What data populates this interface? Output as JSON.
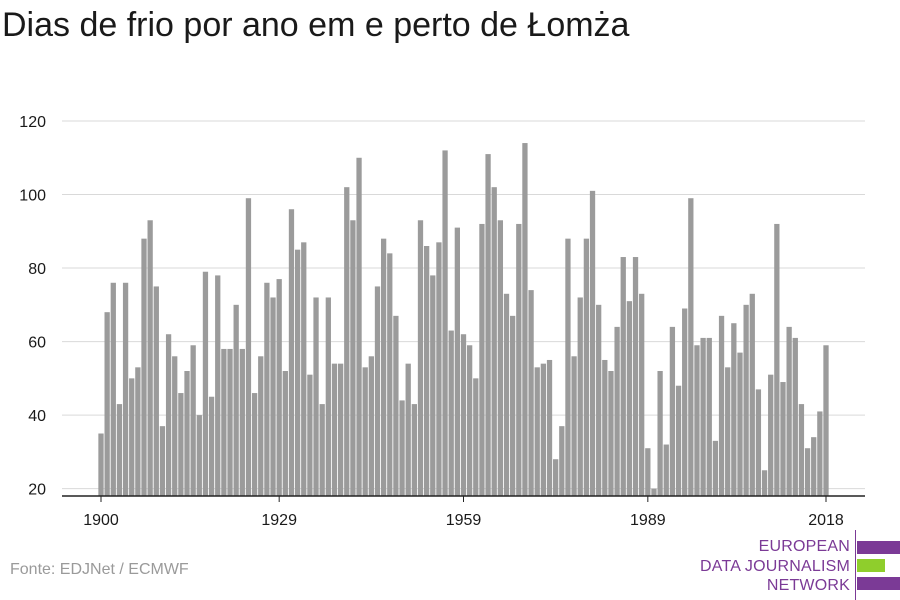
{
  "title": "Dias de frio por ano em e perto de Łomża",
  "source": "Fonte: EDJNet / ECMWF",
  "logo": {
    "lines": [
      "EUROPEAN",
      "DATA JOURNALISM",
      "NETWORK"
    ],
    "colors": {
      "purple": "#7b3a96",
      "green": "#8fce2c"
    }
  },
  "colors": {
    "bar": "#9b9b9b",
    "grid": "#d9d9d9",
    "axis": "#222222",
    "text": "#1a1a1a"
  },
  "chart_data": {
    "type": "bar",
    "title": "Dias de frio por ano em e perto de Łomża",
    "xlabel": "",
    "ylabel": "",
    "ylim": [
      18,
      120
    ],
    "yticks": [
      20,
      40,
      60,
      80,
      100,
      120
    ],
    "xticks": [
      1900,
      1929,
      1959,
      1989,
      2018
    ],
    "grid": true,
    "x": [
      1900,
      1901,
      1902,
      1903,
      1904,
      1905,
      1906,
      1907,
      1908,
      1909,
      1910,
      1911,
      1912,
      1913,
      1914,
      1915,
      1916,
      1917,
      1918,
      1919,
      1920,
      1921,
      1922,
      1923,
      1924,
      1925,
      1926,
      1927,
      1928,
      1929,
      1930,
      1931,
      1932,
      1933,
      1934,
      1935,
      1936,
      1937,
      1938,
      1939,
      1940,
      1941,
      1942,
      1943,
      1944,
      1945,
      1946,
      1947,
      1948,
      1949,
      1950,
      1951,
      1952,
      1953,
      1954,
      1955,
      1956,
      1957,
      1958,
      1959,
      1960,
      1961,
      1962,
      1963,
      1964,
      1965,
      1966,
      1967,
      1968,
      1969,
      1970,
      1971,
      1972,
      1973,
      1974,
      1975,
      1976,
      1977,
      1978,
      1979,
      1980,
      1981,
      1982,
      1983,
      1984,
      1985,
      1986,
      1987,
      1988,
      1989,
      1990,
      1991,
      1992,
      1993,
      1994,
      1995,
      1996,
      1997,
      1998,
      1999,
      2000,
      2001,
      2002,
      2003,
      2004,
      2005,
      2006,
      2007,
      2008,
      2009,
      2010,
      2011,
      2012,
      2013,
      2014,
      2015,
      2016,
      2017,
      2018
    ],
    "values": [
      35,
      68,
      76,
      43,
      76,
      50,
      53,
      88,
      93,
      75,
      37,
      62,
      56,
      46,
      52,
      59,
      40,
      79,
      45,
      78,
      58,
      58,
      70,
      58,
      99,
      46,
      56,
      76,
      72,
      77,
      52,
      96,
      85,
      87,
      51,
      72,
      43,
      72,
      54,
      54,
      102,
      93,
      110,
      53,
      56,
      75,
      88,
      84,
      67,
      44,
      54,
      43,
      93,
      86,
      78,
      87,
      112,
      63,
      91,
      62,
      59,
      50,
      92,
      111,
      102,
      93,
      73,
      67,
      92,
      114,
      74,
      53,
      54,
      55,
      28,
      37,
      88,
      56,
      72,
      88,
      101,
      70,
      55,
      52,
      64,
      83,
      71,
      83,
      73,
      31,
      20,
      52,
      32,
      64,
      48,
      69,
      99,
      59,
      61,
      61,
      33,
      67,
      53,
      65,
      57,
      70,
      73,
      47,
      25,
      51,
      92,
      49,
      64,
      61,
      43,
      31,
      34,
      41,
      59
    ]
  }
}
